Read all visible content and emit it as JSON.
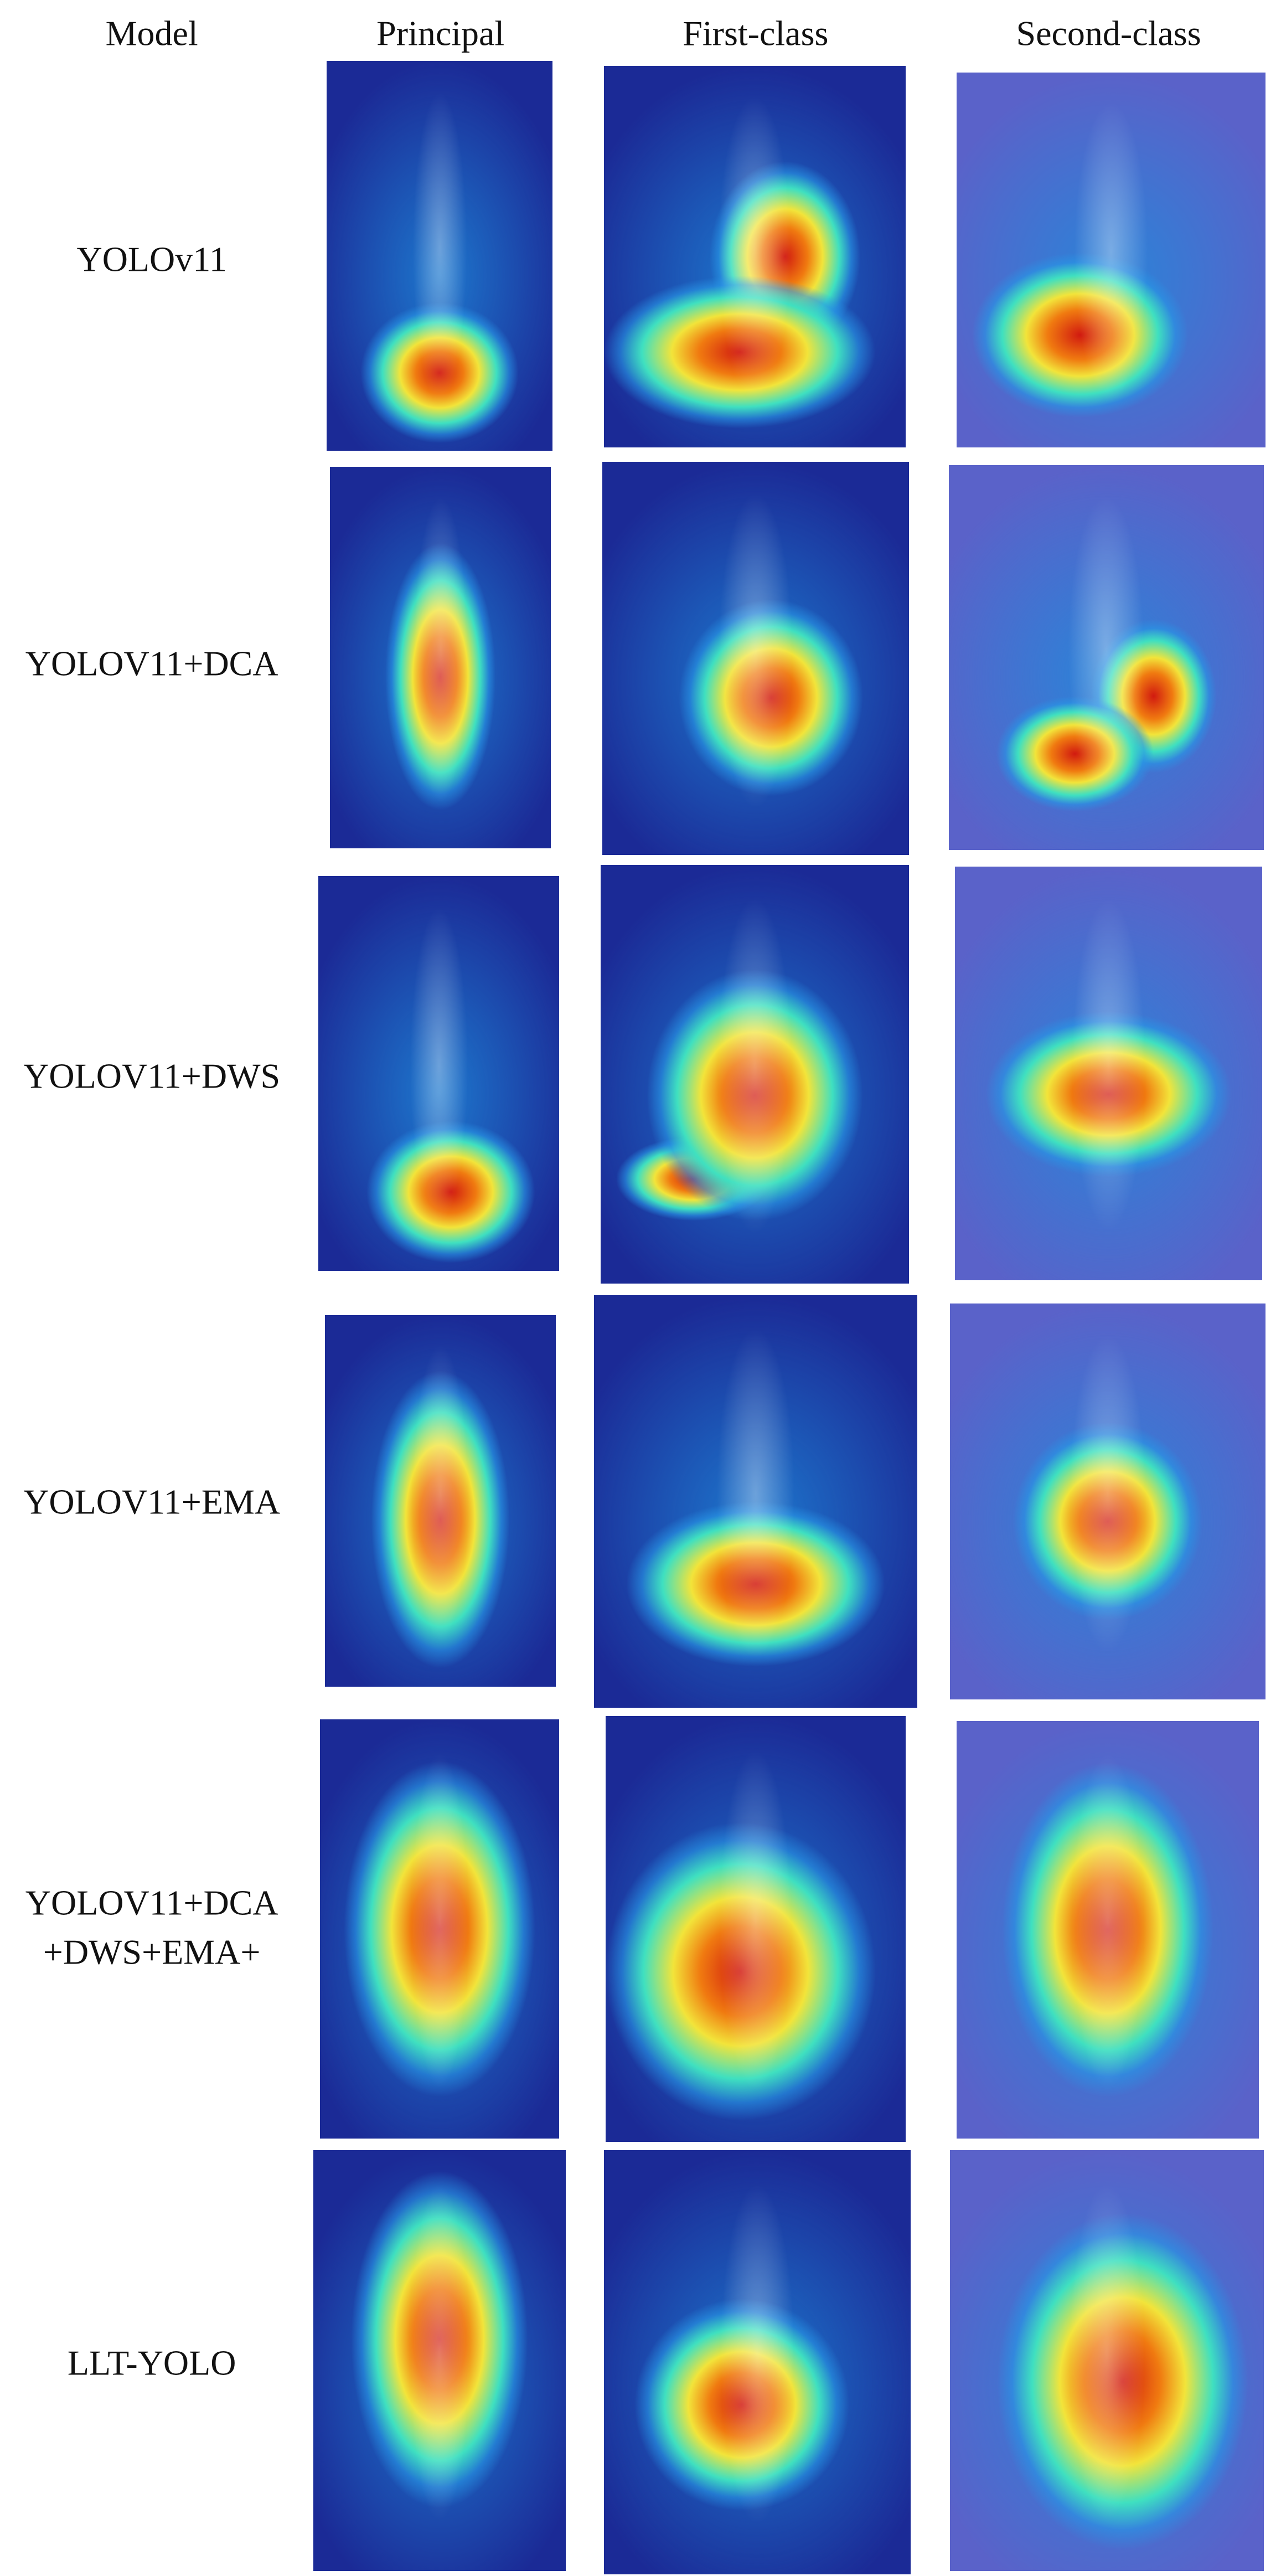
{
  "header": {
    "columns": [
      "Model",
      "Principal",
      "First-class",
      "Second-class"
    ]
  },
  "rows": [
    {
      "lines": [
        "YOLOv11"
      ]
    },
    {
      "lines": [
        "YOLOV11+DCA"
      ]
    },
    {
      "lines": [
        "YOLOV11+DWS"
      ]
    },
    {
      "lines": [
        "YOLOV11+EMA"
      ]
    },
    {
      "lines": [
        "YOLOV11+DCA",
        "+DWS+EMA+"
      ]
    },
    {
      "lines": [
        "LLT-YOLO"
      ]
    }
  ]
}
